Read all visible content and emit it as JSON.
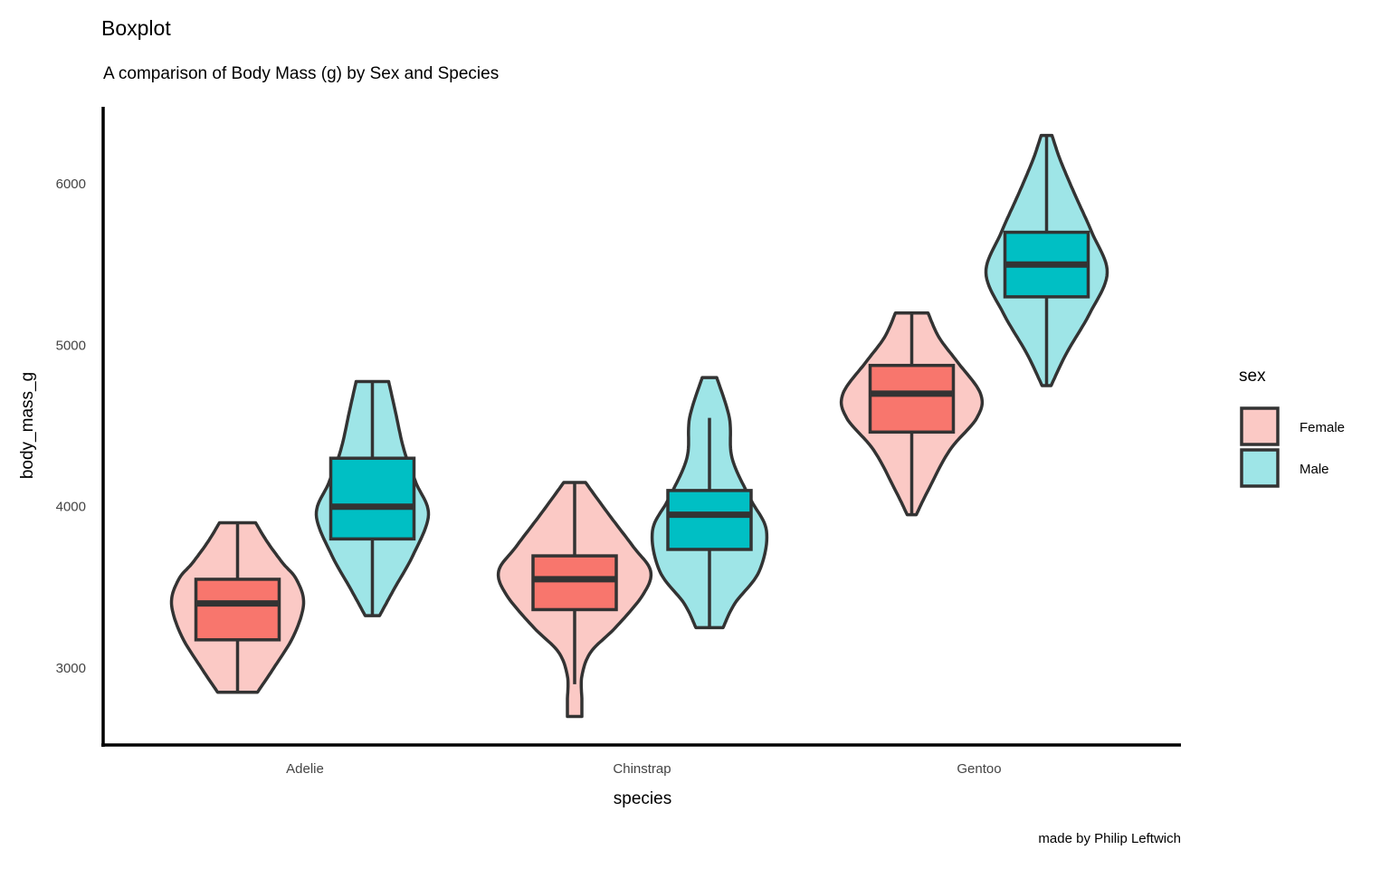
{
  "chart_data": {
    "type": "violin",
    "title": "Boxplot",
    "subtitle": "A comparison of Body Mass (g) by Sex and Species",
    "caption": "made by Philip Leftwich",
    "xlabel": "species",
    "ylabel": "body_mass_g",
    "categories": [
      "Adelie",
      "Chinstrap",
      "Gentoo"
    ],
    "yticks": [
      3000,
      4000,
      5000,
      6000
    ],
    "ylim": [
      2530,
      6480
    ],
    "legend": {
      "title": "sex",
      "position": "right",
      "entries": [
        "Female",
        "Male"
      ]
    },
    "colors": {
      "Female": "#F8766D",
      "Male": "#00BFC4",
      "Female_violin": "#FBC9C5",
      "Male_violin": "#9EE5E7",
      "outline": "#333333"
    },
    "series": [
      {
        "name": "Female",
        "groups": [
          {
            "category": "Adelie",
            "min": 2850,
            "q1": 3175,
            "median": 3400,
            "q3": 3550,
            "max": 3900,
            "density": [
              [
                2850,
                22
              ],
              [
                3000,
                40
              ],
              [
                3200,
                62
              ],
              [
                3400,
                73
              ],
              [
                3550,
                65
              ],
              [
                3650,
                50
              ],
              [
                3780,
                33
              ],
              [
                3900,
                20
              ]
            ]
          },
          {
            "category": "Chinstrap",
            "min": 2900,
            "q1": 3362,
            "median": 3550,
            "q3": 3695,
            "max": 4150,
            "violin_min": 2700,
            "density": [
              [
                2700,
                8
              ],
              [
                2800,
                8
              ],
              [
                2950,
                8
              ],
              [
                3100,
                18
              ],
              [
                3250,
                45
              ],
              [
                3450,
                75
              ],
              [
                3600,
                84
              ],
              [
                3750,
                65
              ],
              [
                3950,
                38
              ],
              [
                4150,
                12
              ]
            ]
          },
          {
            "category": "Gentoo",
            "min": 3950,
            "q1": 4462,
            "median": 4700,
            "q3": 4875,
            "max": 5200,
            "density": [
              [
                3950,
                5
              ],
              [
                4100,
                18
              ],
              [
                4350,
                42
              ],
              [
                4550,
                72
              ],
              [
                4700,
                76
              ],
              [
                4900,
                50
              ],
              [
                5050,
                30
              ],
              [
                5200,
                18
              ]
            ]
          }
        ]
      },
      {
        "name": "Male",
        "groups": [
          {
            "category": "Adelie",
            "min": 3325,
            "q1": 3800,
            "median": 4000,
            "q3": 4300,
            "max": 4775,
            "density": [
              [
                3325,
                8
              ],
              [
                3500,
                25
              ],
              [
                3700,
                45
              ],
              [
                3950,
                62
              ],
              [
                4150,
                48
              ],
              [
                4350,
                35
              ],
              [
                4600,
                25
              ],
              [
                4775,
                18
              ]
            ]
          },
          {
            "category": "Chinstrap",
            "min": 3250,
            "q1": 3735,
            "median": 3950,
            "q3": 4100,
            "max": 4550,
            "violin_max": 4800,
            "density": [
              [
                3250,
                15
              ],
              [
                3400,
                28
              ],
              [
                3600,
                55
              ],
              [
                3850,
                63
              ],
              [
                4050,
                45
              ],
              [
                4300,
                25
              ],
              [
                4550,
                22
              ],
              [
                4800,
                8
              ]
            ]
          },
          {
            "category": "Gentoo",
            "min": 4750,
            "q1": 5300,
            "median": 5500,
            "q3": 5700,
            "max": 6300,
            "density": [
              [
                4750,
                5
              ],
              [
                4950,
                22
              ],
              [
                5200,
                48
              ],
              [
                5450,
                67
              ],
              [
                5700,
                50
              ],
              [
                5950,
                30
              ],
              [
                6150,
                15
              ],
              [
                6300,
                6
              ]
            ]
          }
        ]
      }
    ]
  }
}
